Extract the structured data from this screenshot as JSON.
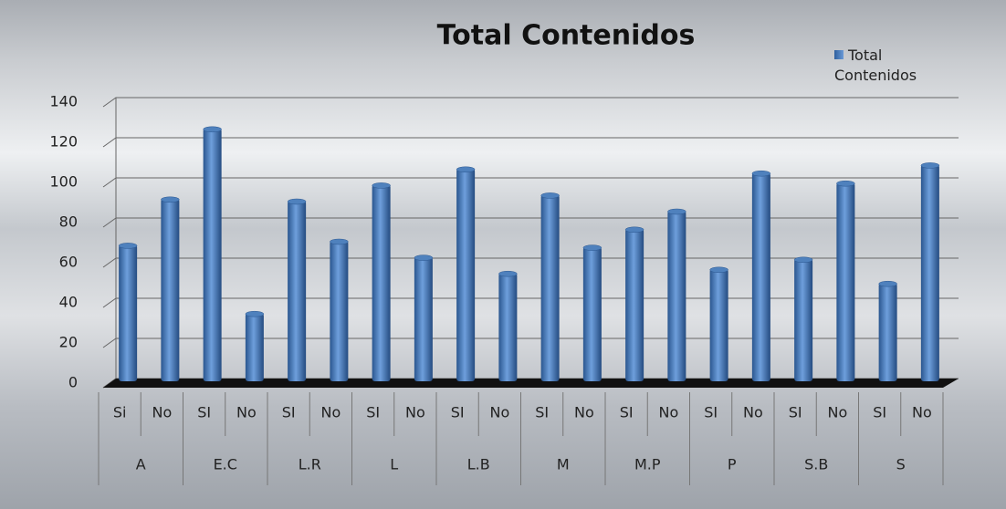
{
  "chart_data": {
    "type": "bar",
    "title": "Total Contenidos",
    "categories": [
      "Si",
      "No",
      "SI",
      "No",
      "SI",
      "No",
      "SI",
      "No",
      "SI",
      "No",
      "SI",
      "No",
      "SI",
      "No",
      "SI",
      "No",
      "SI",
      "No",
      "SI",
      "No"
    ],
    "groups": [
      "A",
      "E.C",
      "L.R",
      "L",
      "L.B",
      "M",
      "M.P",
      "P",
      "S.B",
      "S"
    ],
    "series": [
      {
        "name": "Total Contenidos",
        "color": "#4f81bd",
        "values": [
          68,
          91,
          126,
          34,
          90,
          70,
          98,
          62,
          106,
          54,
          93,
          67,
          76,
          85,
          56,
          104,
          61,
          99,
          49,
          108
        ]
      }
    ],
    "ylim": [
      0,
      140
    ],
    "yticks": [
      0,
      20,
      40,
      60,
      80,
      100,
      120,
      140
    ],
    "grid": true,
    "legend": "top-right"
  }
}
